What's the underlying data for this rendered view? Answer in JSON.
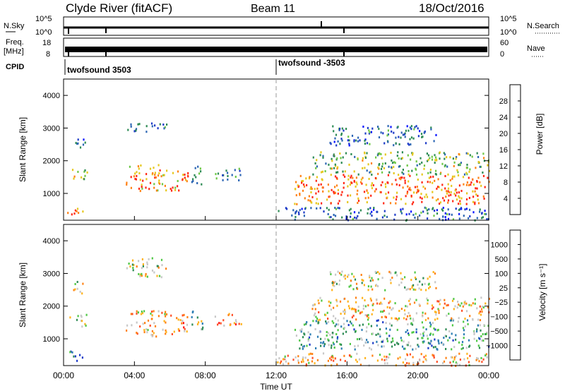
{
  "header": {
    "station": "Clyde River (fitACF)",
    "beam": "Beam 11",
    "date": "18/Oct/2016"
  },
  "ancillary": {
    "nsky_label": "N.Sky",
    "nsky_ticks": [
      "10^5",
      "10^0"
    ],
    "nsearch_label": "N.Search",
    "nsearch_ticks": [
      "10^5",
      "10^0"
    ],
    "freq_label_1": "Freq.",
    "freq_label_2": "[MHz]",
    "freq_ticks": [
      "18",
      "8"
    ],
    "nave_label": "Nave",
    "nave_ticks": [
      "60",
      "0"
    ],
    "cpid_label": "CPID",
    "cpid_entries": [
      {
        "label": "twofsound 3503",
        "start_hour": 0
      },
      {
        "label": "twofsound -3503",
        "start_hour": 12
      }
    ]
  },
  "chart_data": [
    {
      "type": "heatmap",
      "title": "",
      "ylabel": "Slant Range [km]",
      "xlabel": "",
      "xlim": [
        0,
        24
      ],
      "ylim": [
        180,
        4500
      ],
      "yticks": [
        "1000",
        "2000",
        "3000",
        "4000"
      ],
      "colorbar": {
        "label": "Power [dB]",
        "ticks": [
          "4",
          "8",
          "12",
          "16",
          "20",
          "24",
          "28"
        ],
        "colors": [
          "#0a14ff",
          "#1e3cc8",
          "#2c66b4",
          "#2e8c55",
          "#6ec846",
          "#e6c81e",
          "#ff8214",
          "#ff2814"
        ]
      },
      "echo_regions": [
        {
          "t0": 0.3,
          "t1": 1.3,
          "r0": 1400,
          "r1": 1800,
          "level": 0.6
        },
        {
          "t0": 0.5,
          "t1": 1.2,
          "r0": 2400,
          "r1": 2800,
          "level": 0.3
        },
        {
          "t0": 0.2,
          "t1": 1.1,
          "r0": 350,
          "r1": 650,
          "level": 0.85
        },
        {
          "t0": 3.5,
          "t1": 5.8,
          "r0": 1100,
          "r1": 1900,
          "level": 0.75
        },
        {
          "t0": 3.5,
          "t1": 5.8,
          "r0": 2900,
          "r1": 3200,
          "level": 0.35
        },
        {
          "t0": 6.0,
          "t1": 7.0,
          "r0": 1100,
          "r1": 1800,
          "level": 0.8
        },
        {
          "t0": 7.2,
          "t1": 7.9,
          "r0": 1300,
          "r1": 1900,
          "level": 0.5
        },
        {
          "t0": 8.5,
          "t1": 10.0,
          "r0": 1400,
          "r1": 1800,
          "level": 0.35
        },
        {
          "t0": 13.0,
          "t1": 24.0,
          "r0": 700,
          "r1": 1600,
          "level": 0.85
        },
        {
          "t0": 14.0,
          "t1": 24.0,
          "r0": 1600,
          "r1": 2300,
          "level": 0.55
        },
        {
          "t0": 15.0,
          "t1": 21.0,
          "r0": 2500,
          "r1": 3100,
          "level": 0.3
        },
        {
          "t0": 12.0,
          "t1": 24.0,
          "r0": 200,
          "r1": 600,
          "level": 0.3
        }
      ]
    },
    {
      "type": "heatmap",
      "title": "",
      "ylabel": "Slant Range [km]",
      "xlabel": "Time UT",
      "xlim": [
        0,
        24
      ],
      "ylim": [
        180,
        4500
      ],
      "xticks": [
        "00:00",
        "04:00",
        "08:00",
        "12:00",
        "16:00",
        "20:00",
        "00:00"
      ],
      "yticks": [
        "1000",
        "2000",
        "3000",
        "4000"
      ],
      "colorbar": {
        "label": "Velocity [m s⁻¹]",
        "ticks": [
          "1000",
          "500",
          "100",
          "25",
          "−25",
          "−100",
          "−500",
          "−1000"
        ],
        "colors": [
          "#1e3cc8",
          "#2c7eb4",
          "#2e8c55",
          "#50c846",
          "#c8c8c8",
          "#ffb41e",
          "#ff8214",
          "#ff5028",
          "#ff1414"
        ]
      },
      "echo_regions": [
        {
          "t0": 0.3,
          "t1": 1.3,
          "r0": 1400,
          "r1": 1800,
          "level": 0.45
        },
        {
          "t0": 0.5,
          "t1": 1.2,
          "r0": 2400,
          "r1": 2800,
          "level": 0.5
        },
        {
          "t0": 0.2,
          "t1": 1.1,
          "r0": 350,
          "r1": 650,
          "level": 0.2
        },
        {
          "t0": 3.5,
          "t1": 5.8,
          "r0": 1100,
          "r1": 1900,
          "level": 0.65
        },
        {
          "t0": 3.5,
          "t1": 5.8,
          "r0": 2900,
          "r1": 3500,
          "level": 0.5
        },
        {
          "t0": 6.0,
          "t1": 7.0,
          "r0": 1100,
          "r1": 1800,
          "level": 0.7
        },
        {
          "t0": 7.2,
          "t1": 7.9,
          "r0": 1300,
          "r1": 1900,
          "level": 0.4
        },
        {
          "t0": 8.5,
          "t1": 10.0,
          "r0": 1400,
          "r1": 1800,
          "level": 0.7
        },
        {
          "t0": 13.0,
          "t1": 24.0,
          "r0": 700,
          "r1": 1600,
          "level": 0.3
        },
        {
          "t0": 14.0,
          "t1": 24.0,
          "r0": 1600,
          "r1": 2300,
          "level": 0.6
        },
        {
          "t0": 15.0,
          "t1": 21.0,
          "r0": 2500,
          "r1": 3100,
          "level": 0.5
        },
        {
          "t0": 12.0,
          "t1": 24.0,
          "r0": 200,
          "r1": 600,
          "level": 0.65
        }
      ]
    }
  ]
}
